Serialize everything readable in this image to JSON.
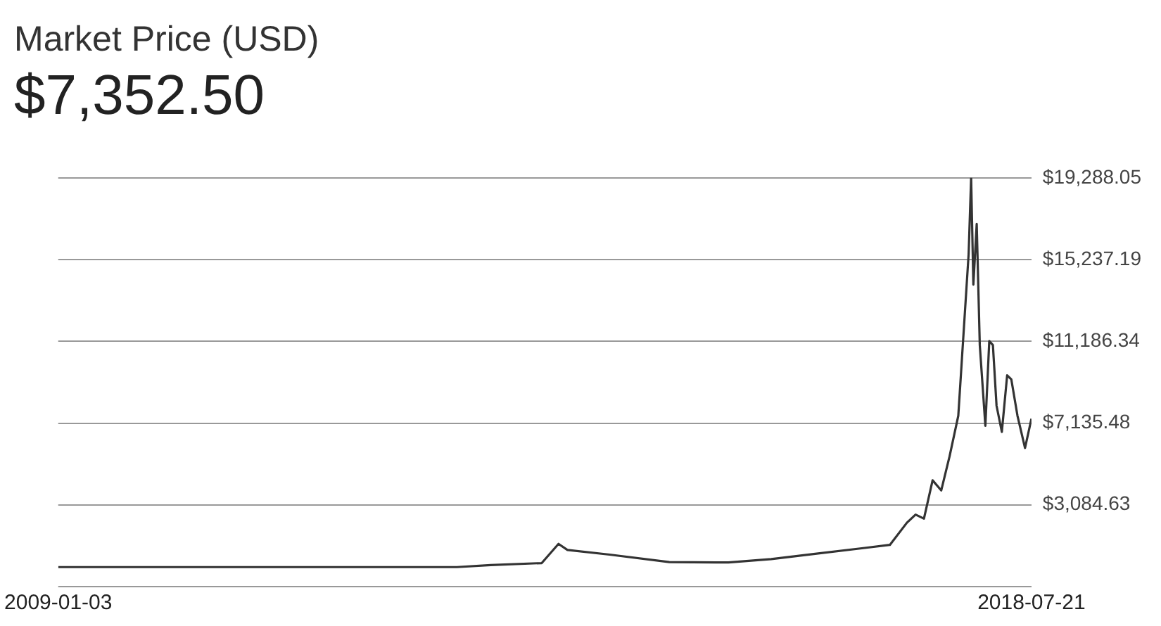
{
  "chart_data": {
    "type": "line",
    "title": "Market Price (USD)",
    "subtitle": "$7,352.50",
    "x": [
      "2009-01-03",
      "2010-07",
      "2011-06",
      "2012-12",
      "2013-04",
      "2013-10",
      "2013-11-30",
      "2014-01",
      "2014-06",
      "2015-01",
      "2015-08",
      "2016-01",
      "2016-06",
      "2016-12",
      "2017-03",
      "2017-05",
      "2017-06",
      "2017-07",
      "2017-08",
      "2017-09",
      "2017-10",
      "2017-11",
      "2017-12-08",
      "2017-12-17",
      "2017-12-25",
      "2018-01-06",
      "2018-01-17",
      "2018-02-06",
      "2018-02-20",
      "2018-03-05",
      "2018-03-18",
      "2018-04-06",
      "2018-04-25",
      "2018-05-10",
      "2018-06-01",
      "2018-06-28",
      "2018-07-21"
    ],
    "series": [
      {
        "color": "#333333",
        "values": [
          0,
          0,
          0,
          0,
          100,
          200,
          1150,
          850,
          620,
          250,
          230,
          400,
          650,
          950,
          1100,
          2200,
          2600,
          2400,
          4300,
          3800,
          5500,
          7500,
          15500,
          19288.05,
          14000,
          17000,
          11000,
          7000,
          11200,
          11000,
          8000,
          6700,
          9500,
          9300,
          7500,
          5900,
          7352.5
        ]
      }
    ],
    "xlim": [
      "2009-01-03",
      "2018-07-21"
    ],
    "xticks": [
      "2009-01-03",
      "2018-07-21"
    ],
    "ylim": [
      -966.23,
      19288.05
    ],
    "yticks": [
      {
        "value": -966.23,
        "label": null
      },
      {
        "value": 3084.63,
        "label": "$3,084.63"
      },
      {
        "value": 7135.48,
        "label": "$7,135.48"
      },
      {
        "value": 11186.34,
        "label": "$11,186.34"
      },
      {
        "value": 15237.19,
        "label": "$15,237.19"
      },
      {
        "value": 19288.05,
        "label": "$19,288.05"
      }
    ],
    "grid": "y",
    "legend": false,
    "marker": "none",
    "line_style": "solid"
  }
}
